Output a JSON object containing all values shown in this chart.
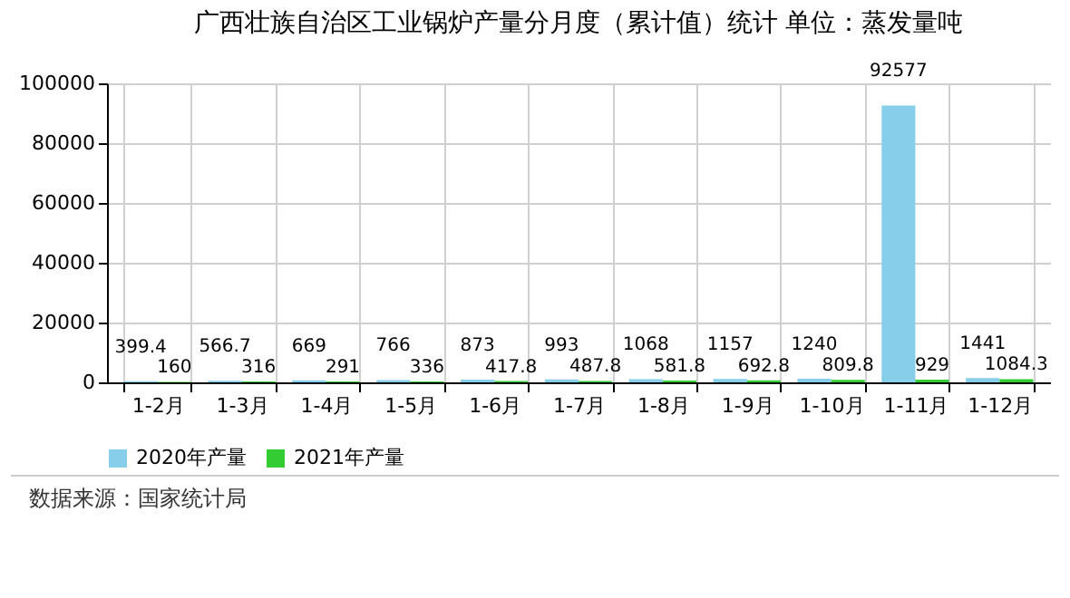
{
  "chart_data": {
    "type": "bar",
    "title": "广西壮族自治区工业锅炉产量分月度（累计值）统计 单位：蒸发量吨",
    "categories": [
      "1-2月",
      "1-3月",
      "1-4月",
      "1-5月",
      "1-6月",
      "1-7月",
      "1-8月",
      "1-9月",
      "1-10月",
      "1-11月",
      "1-12月"
    ],
    "series": [
      {
        "name": "2020年产量",
        "color": "#87ceeb",
        "values": [
          399.4,
          566.7,
          669,
          766,
          873,
          993,
          1068,
          1157,
          1240,
          92577,
          1441
        ]
      },
      {
        "name": "2021年产量",
        "color": "#33cc33",
        "values": [
          160,
          316,
          291,
          336,
          417.8,
          487.8,
          581.8,
          692.8,
          809.8,
          929,
          1084.3
        ]
      }
    ],
    "ylim": [
      0,
      100000
    ],
    "yticks": [
      0,
      20000,
      40000,
      60000,
      80000,
      100000
    ],
    "grid": true,
    "legend": "bottom",
    "data_labels": true,
    "annotations": [
      "数据来源：国家统计局"
    ]
  }
}
